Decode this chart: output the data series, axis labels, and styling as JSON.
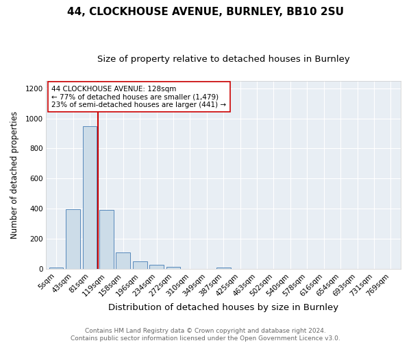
{
  "title1": "44, CLOCKHOUSE AVENUE, BURNLEY, BB10 2SU",
  "title2": "Size of property relative to detached houses in Burnley",
  "xlabel": "Distribution of detached houses by size in Burnley",
  "ylabel": "Number of detached properties",
  "categories": [
    "5sqm",
    "43sqm",
    "81sqm",
    "119sqm",
    "158sqm",
    "196sqm",
    "234sqm",
    "272sqm",
    "310sqm",
    "349sqm",
    "387sqm",
    "425sqm",
    "463sqm",
    "502sqm",
    "540sqm",
    "578sqm",
    "616sqm",
    "654sqm",
    "693sqm",
    "731sqm",
    "769sqm"
  ],
  "values": [
    10,
    395,
    950,
    390,
    110,
    50,
    27,
    12,
    0,
    0,
    10,
    0,
    0,
    0,
    0,
    0,
    0,
    0,
    0,
    0,
    0
  ],
  "bar_color": "#ccdce8",
  "bar_edge_color": "#5588bb",
  "vline_x": 2.5,
  "vline_color": "#cc0000",
  "annotation_box_text": "44 CLOCKHOUSE AVENUE: 128sqm\n← 77% of detached houses are smaller (1,479)\n23% of semi-detached houses are larger (441) →",
  "annotation_box_color": "#ffffff",
  "annotation_box_edge_color": "#cc0000",
  "ylim": [
    0,
    1250
  ],
  "yticks": [
    0,
    200,
    400,
    600,
    800,
    1000,
    1200
  ],
  "plot_bg_color": "#e8eef4",
  "fig_bg_color": "#ffffff",
  "grid_color": "#ffffff",
  "footnote": "Contains HM Land Registry data © Crown copyright and database right 2024.\nContains public sector information licensed under the Open Government Licence v3.0.",
  "title1_fontsize": 11,
  "title2_fontsize": 9.5,
  "xlabel_fontsize": 9.5,
  "ylabel_fontsize": 8.5,
  "tick_fontsize": 7.5,
  "annot_fontsize": 7.5,
  "footnote_fontsize": 6.5
}
